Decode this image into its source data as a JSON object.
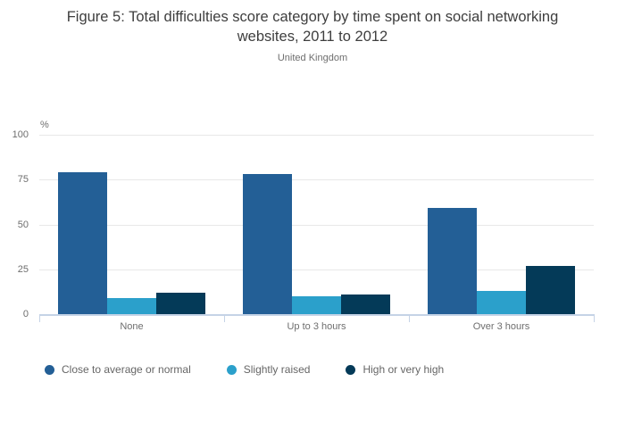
{
  "chart_data": {
    "type": "bar",
    "title": "Figure 5: Total difficulties score category by time spent on social networking websites, 2011 to 2012",
    "subtitle": "United Kingdom",
    "ylabel": "%",
    "xlabel": "",
    "ylim": [
      0,
      100
    ],
    "yticks": [
      0,
      25,
      50,
      75,
      100
    ],
    "grid": true,
    "legend_position": "bottom",
    "categories": [
      "None",
      "Up to 3 hours",
      "Over 3 hours"
    ],
    "series": [
      {
        "name": "Close to average or normal",
        "color": "#235F96",
        "values": [
          79,
          78,
          59
        ]
      },
      {
        "name": "Slightly raised",
        "color": "#2BA0CB",
        "values": [
          9,
          10,
          13
        ]
      },
      {
        "name": "High or very high",
        "color": "#043A58",
        "values": [
          12,
          11,
          27
        ]
      }
    ]
  },
  "colors": {
    "axis_line": "#c5d3e6",
    "gridline": "#e8e8e8",
    "title_text": "#3e3e3e",
    "axis_text": "#6e6e6e",
    "legend_text": "#666666"
  }
}
